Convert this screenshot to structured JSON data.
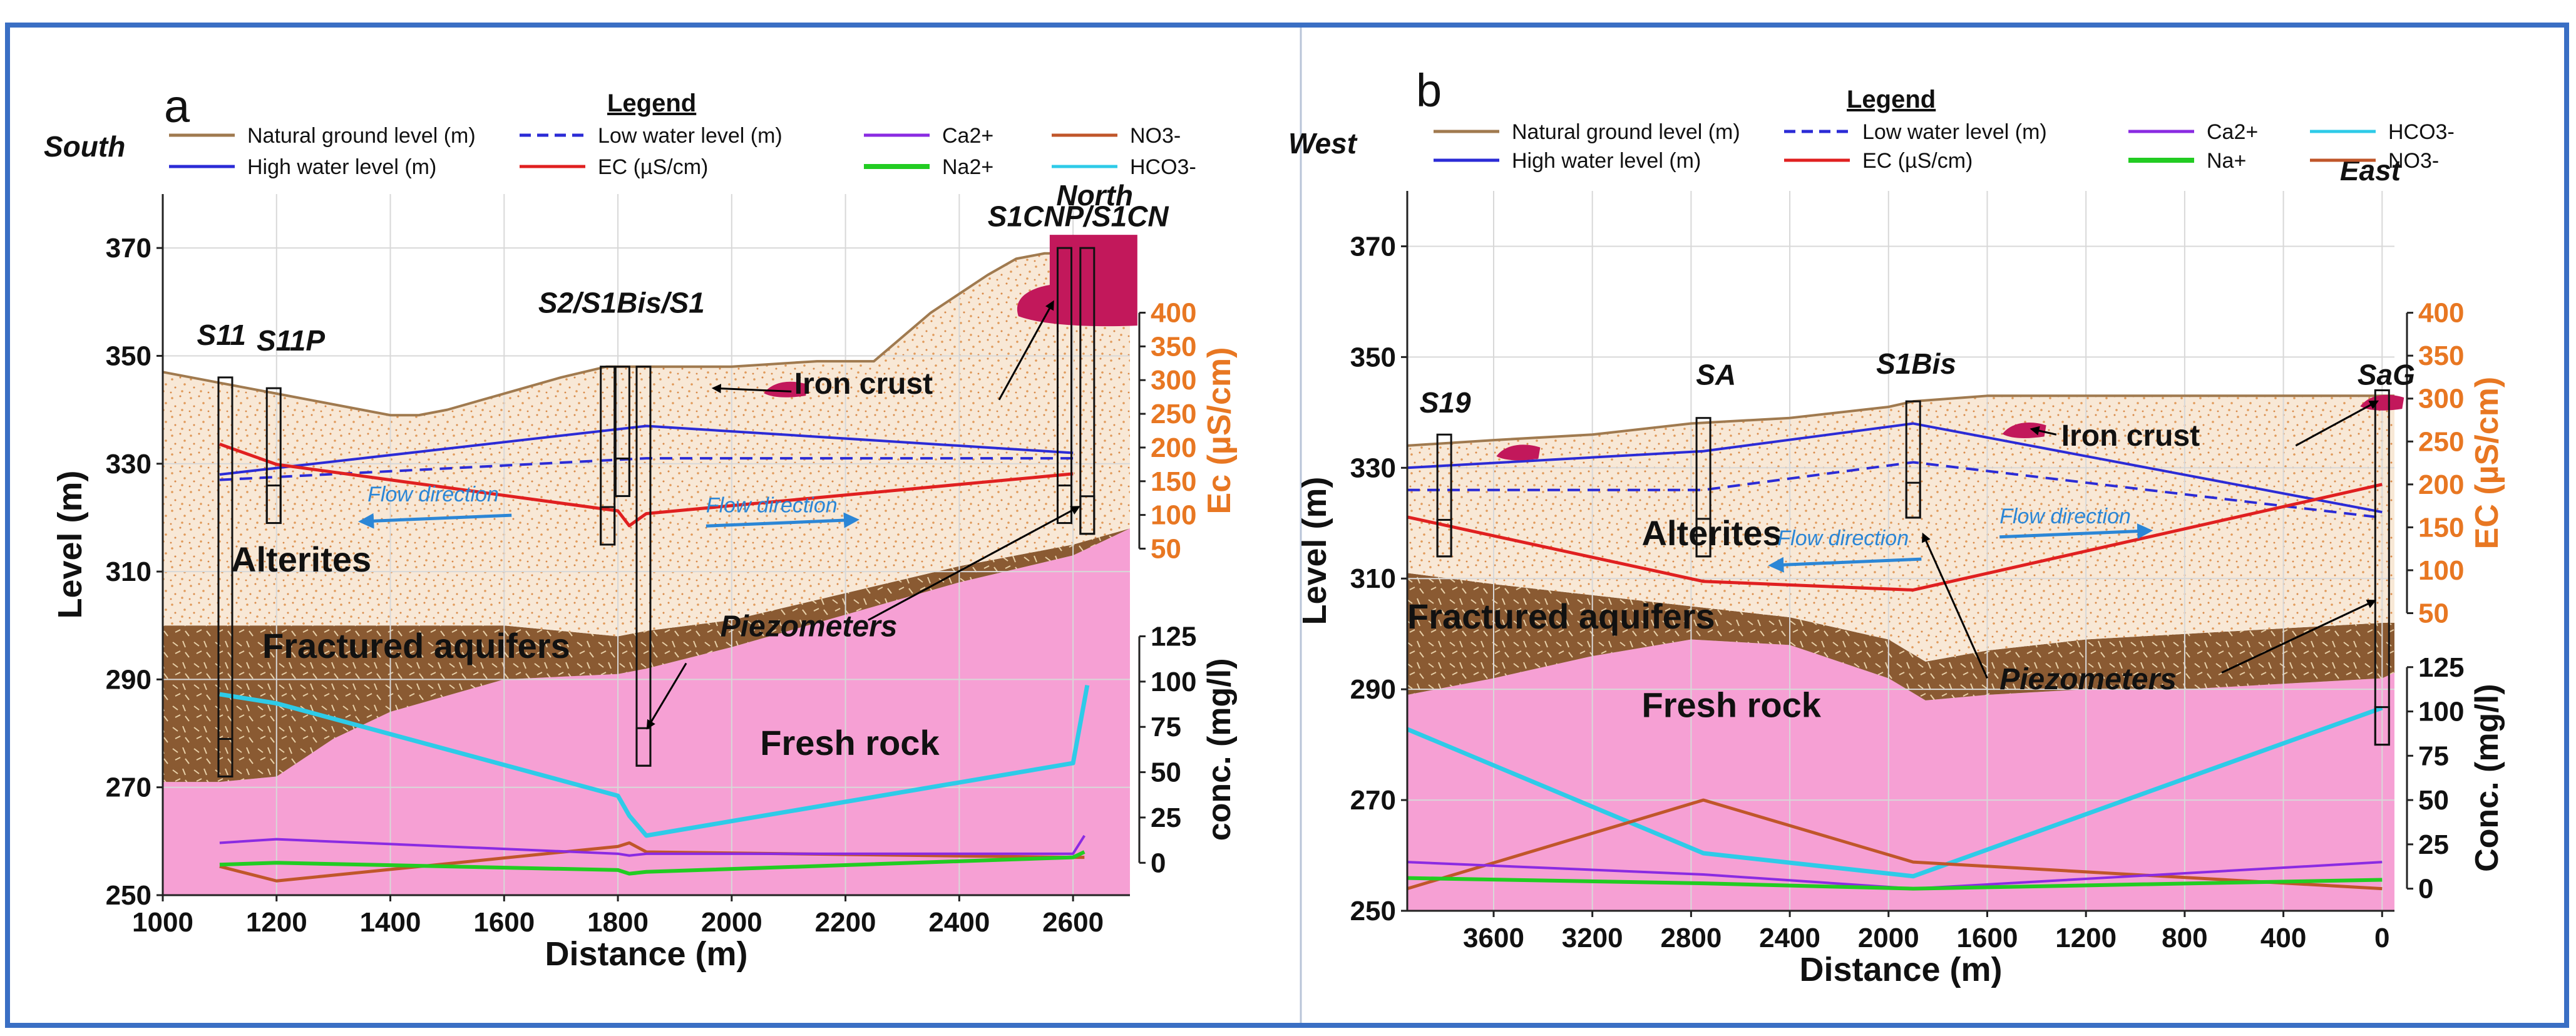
{
  "colors": {
    "frame": "#3a6fc4",
    "ground": "#a07a4f",
    "high_water": "#2b2bd6",
    "low_water": "#2b2bd6",
    "ec": "#e02020",
    "ca": "#8a2be2",
    "na": "#22cc22",
    "no3": "#c0562a",
    "hco3": "#2ecbe8",
    "alterites": "#f8e8d6",
    "fractured": "#8a5a32",
    "fresh_rock": "#f6a0d4",
    "iron_crust": "#c2185b",
    "ec_axis": "#e87722"
  },
  "legend_title": "Legend",
  "chart_data": [
    {
      "panel": "a",
      "type": "line",
      "orientation_left": "South",
      "orientation_right": "North",
      "xlabel": "Distance (m)",
      "ylabel": "Level (m)",
      "ylabel_right_top": "Ec (µS/cm)",
      "ylabel_right_bottom": "conc. (mg/l)",
      "xlim": [
        1000,
        2700
      ],
      "ylim": [
        250,
        380
      ],
      "x_ticks": [
        "1000",
        "1200",
        "1400",
        "1600",
        "1800",
        "2000",
        "2200",
        "2400",
        "2600"
      ],
      "y_ticks": [
        "250",
        "270",
        "290",
        "310",
        "330",
        "350",
        "370"
      ],
      "ec_ticks": [
        "50",
        "100",
        "150",
        "200",
        "250",
        "300",
        "350",
        "400"
      ],
      "ec_range": [
        0,
        400
      ],
      "conc_ticks": [
        "0",
        "25",
        "50",
        "75",
        "100",
        "125"
      ],
      "conc_range": [
        0,
        125
      ],
      "legend": {
        "col1": [
          "Natural ground level (m)",
          "High water level (m)"
        ],
        "col2": [
          "Low water level (m)",
          "EC (µS/cm)"
        ],
        "col3": [
          "Ca2+",
          "Na2+"
        ],
        "col4": [
          "NO3-",
          "HCO3-"
        ]
      },
      "wells": [
        {
          "name": "S11",
          "x": 1110,
          "top": 346,
          "bottom": 272
        },
        {
          "name": "S11P",
          "x": 1195,
          "top": 344,
          "bottom": 319
        },
        {
          "name": "S2",
          "x": 1782,
          "top": 348,
          "bottom": 315
        },
        {
          "name": "S1Bis",
          "x": 1808,
          "top": 348,
          "bottom": 324
        },
        {
          "name": "S1",
          "x": 1845,
          "top": 348,
          "bottom": 274
        },
        {
          "name": "S1CNP",
          "x": 2585,
          "top": 370,
          "bottom": 319
        },
        {
          "name": "S1CN",
          "x": 2625,
          "top": 370,
          "bottom": 317
        }
      ],
      "well_labels": [
        {
          "text": "S11",
          "x": 1060,
          "y": 352
        },
        {
          "text": "S11P",
          "x": 1165,
          "y": 351
        },
        {
          "text": "S2/S1Bis/S1",
          "x": 1660,
          "y": 358
        },
        {
          "text": "S1CNP/S1CN",
          "x": 2450,
          "y": 374
        }
      ],
      "layer_labels": [
        {
          "text": "Alterites",
          "x": 1120,
          "y": 310
        },
        {
          "text": "Fractured aquifers",
          "x": 1175,
          "y": 294
        },
        {
          "text": "Fresh rock",
          "x": 2050,
          "y": 276
        },
        {
          "text": "Iron crust",
          "x": 2110,
          "y": 343
        },
        {
          "text": "Piezometers",
          "x": 1980,
          "y": 298
        }
      ],
      "flow_labels": [
        {
          "text": "Flow direction",
          "x": 1360,
          "y": 323
        },
        {
          "text": "Flow direction",
          "x": 1955,
          "y": 321
        }
      ],
      "ground_level": {
        "x": [
          1000,
          1050,
          1100,
          1200,
          1300,
          1400,
          1450,
          1500,
          1600,
          1700,
          1780,
          1850,
          2000,
          2150,
          2250,
          2350,
          2450,
          2500,
          2550,
          2700
        ],
        "y": [
          347,
          346,
          345,
          343,
          341,
          339,
          339,
          340,
          343,
          346,
          348,
          348,
          348,
          349,
          349,
          358,
          365,
          368,
          369,
          369
        ]
      },
      "alterites_bottom": {
        "x": [
          1000,
          1100,
          1200,
          1400,
          1600,
          1800,
          1850,
          2000,
          2200,
          2400,
          2600,
          2700
        ],
        "y": [
          300,
          300,
          300,
          300,
          300,
          298,
          299,
          301,
          306,
          311,
          315,
          318
        ]
      },
      "fresh_rock_top": {
        "x": [
          1000,
          1100,
          1200,
          1300,
          1400,
          1600,
          1800,
          1850,
          2000,
          2200,
          2400,
          2600,
          2700
        ],
        "y": [
          271,
          271,
          272,
          279,
          284,
          290,
          291,
          292,
          296,
          302,
          308,
          313,
          318
        ]
      },
      "high_water_level": {
        "x": [
          1100,
          1850,
          2600
        ],
        "y": [
          328,
          337,
          332
        ]
      },
      "low_water_level": {
        "x": [
          1100,
          1850,
          2600
        ],
        "y": [
          327,
          331,
          331
        ]
      },
      "ec": {
        "x": [
          1100,
          1200,
          1800,
          1820,
          1850,
          2600
        ],
        "y": [
          205,
          175,
          106,
          84,
          102,
          161
        ]
      },
      "ca": {
        "x": [
          1100,
          1200,
          1800,
          1820,
          1850,
          2600,
          2620
        ],
        "y": [
          11,
          13,
          5,
          4,
          5,
          5,
          15
        ]
      },
      "na": {
        "x": [
          1100,
          1200,
          1800,
          1820,
          1850,
          2600,
          2620
        ],
        "y": [
          -1,
          0,
          -4,
          -6,
          -5,
          3,
          6
        ]
      },
      "no3": {
        "x": [
          1100,
          1200,
          1800,
          1820,
          1850,
          2600,
          2620
        ],
        "y": [
          -2,
          -10,
          9,
          11,
          6,
          3,
          3
        ]
      },
      "hco3": {
        "x": [
          1100,
          1200,
          1800,
          1820,
          1850,
          2000,
          2600,
          2625
        ],
        "y": [
          93,
          88,
          37,
          26,
          15,
          23,
          55,
          98
        ]
      },
      "iron_crusts": [
        {
          "x": 2095,
          "y": 344,
          "size": "small"
        },
        {
          "x": 2570,
          "y": 362,
          "size": "large"
        }
      ]
    },
    {
      "panel": "b",
      "type": "line",
      "orientation_left": "West",
      "orientation_right": "East",
      "xlabel": "Distance (m)",
      "ylabel": "Level (m)",
      "ylabel_right_top": "EC (µS/cm)",
      "ylabel_right_bottom": "Conc. (mg/l)",
      "xlim": [
        3950,
        -50
      ],
      "ylim": [
        250,
        380
      ],
      "x_ticks": [
        "3600",
        "3200",
        "2800",
        "2400",
        "2000",
        "1600",
        "1200",
        "800",
        "400",
        "0"
      ],
      "y_ticks": [
        "250",
        "270",
        "290",
        "310",
        "330",
        "350",
        "370"
      ],
      "ec_ticks": [
        "50",
        "100",
        "150",
        "200",
        "250",
        "300",
        "350",
        "400"
      ],
      "ec_range": [
        0,
        400
      ],
      "conc_ticks": [
        "0",
        "25",
        "50",
        "75",
        "100",
        "125"
      ],
      "conc_range": [
        0,
        125
      ],
      "legend": {
        "col1": [
          "Natural ground level (m)",
          "High water level (m)"
        ],
        "col2": [
          "Low water level (m)",
          "EC (µS/cm)"
        ],
        "col3": [
          "Ca2+",
          "Na+"
        ],
        "col4": [
          "HCO3-",
          "NO3-"
        ]
      },
      "wells": [
        {
          "name": "S19",
          "x": 3800,
          "top": 336,
          "bottom": 314
        },
        {
          "name": "SA",
          "x": 2750,
          "top": 339,
          "bottom": 314
        },
        {
          "name": "S1Bis",
          "x": 1900,
          "top": 342,
          "bottom": 321
        },
        {
          "name": "SaG",
          "x": 0,
          "top": 344,
          "bottom": 280
        }
      ],
      "well_labels": [
        {
          "text": "S19",
          "x": 3900,
          "y": 340
        },
        {
          "text": "SA",
          "x": 2780,
          "y": 345
        },
        {
          "text": "S1Bis",
          "x": 2050,
          "y": 347
        },
        {
          "text": "SaG",
          "x": 100,
          "y": 345
        }
      ],
      "layer_labels": [
        {
          "text": "Alterites",
          "x": 3000,
          "y": 316
        },
        {
          "text": "Fractured aquifers",
          "x": 3950,
          "y": 301
        },
        {
          "text": "Fresh rock",
          "x": 3000,
          "y": 285
        },
        {
          "text": "Iron crust",
          "x": 1300,
          "y": 334
        },
        {
          "text": "Piezometers",
          "x": 1550,
          "y": 290
        }
      ],
      "flow_labels": [
        {
          "text": "Flow direction",
          "x": 2450,
          "y": 316
        },
        {
          "text": "Flow direction",
          "x": 1550,
          "y": 320
        }
      ],
      "ground_level": {
        "x": [
          3950,
          3600,
          3200,
          2800,
          2400,
          2000,
          1900,
          1600,
          1200,
          800,
          400,
          0,
          -50
        ],
        "y": [
          334,
          335,
          336,
          338,
          339,
          341,
          342,
          343,
          343,
          343,
          343,
          343,
          343
        ]
      },
      "alterites_bottom": {
        "x": [
          3950,
          3600,
          3200,
          2800,
          2400,
          2000,
          1850,
          1600,
          1200,
          800,
          400,
          0,
          -50
        ],
        "y": [
          311,
          309,
          307,
          305,
          303,
          299,
          295,
          297,
          299,
          300,
          301,
          302,
          302
        ]
      },
      "fresh_rock_top": {
        "x": [
          3950,
          3600,
          3200,
          2800,
          2400,
          2000,
          1850,
          1600,
          1200,
          800,
          400,
          0,
          -50
        ],
        "y": [
          289,
          292,
          296,
          299,
          298,
          292,
          288,
          289,
          290,
          290,
          291,
          292,
          293
        ]
      },
      "high_water_level": {
        "x": [
          3950,
          2750,
          1900,
          0
        ],
        "y": [
          330,
          333,
          338,
          322
        ]
      },
      "low_water_level": {
        "x": [
          3950,
          2750,
          1900,
          0
        ],
        "y": [
          326,
          326,
          331,
          321
        ]
      },
      "ec": {
        "x": [
          3950,
          2750,
          1900,
          0
        ],
        "y": [
          162,
          87,
          77,
          200
        ]
      },
      "ca": {
        "x": [
          3950,
          2750,
          1900,
          0
        ],
        "y": [
          15,
          8,
          0,
          15
        ]
      },
      "na": {
        "x": [
          3950,
          2750,
          1900,
          0
        ],
        "y": [
          6,
          3,
          0,
          5
        ]
      },
      "hco3": {
        "x": [
          3950,
          2750,
          1900,
          0
        ],
        "y": [
          90,
          20,
          7,
          102
        ]
      },
      "no3": {
        "x": [
          3950,
          2750,
          1900,
          0
        ],
        "y": [
          0,
          50,
          15,
          0
        ]
      },
      "iron_crusts": [
        {
          "x": 3500,
          "y": 333,
          "size": "small"
        },
        {
          "x": 1450,
          "y": 337,
          "size": "small"
        },
        {
          "x": 0,
          "y": 342,
          "size": "small"
        }
      ]
    }
  ]
}
